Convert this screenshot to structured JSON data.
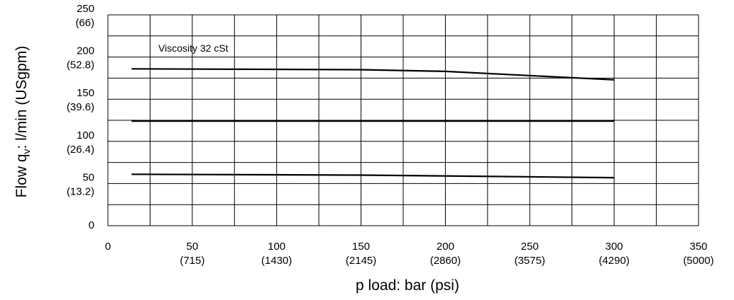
{
  "chart_data": {
    "type": "line",
    "annotation": "Viscosity  32 cSt",
    "xlabel": "p load:  bar (psi)",
    "ylabel": {
      "prefix": "Flow q",
      "subscript": "v",
      "suffix": ":  l/min (USgpm)"
    },
    "xlim": [
      0,
      350
    ],
    "ylim": [
      0,
      250
    ],
    "x_ticks": [
      {
        "value": 0,
        "label": "0",
        "sublabel": ""
      },
      {
        "value": 50,
        "label": "50",
        "sublabel": "(715)"
      },
      {
        "value": 100,
        "label": "100",
        "sublabel": "(1430)"
      },
      {
        "value": 150,
        "label": "150",
        "sublabel": "(2145)"
      },
      {
        "value": 200,
        "label": "200",
        "sublabel": "(2860)"
      },
      {
        "value": 250,
        "label": "250",
        "sublabel": "(3575)"
      },
      {
        "value": 300,
        "label": "300",
        "sublabel": "(4290)"
      },
      {
        "value": 350,
        "label": "350",
        "sublabel": "(5000)"
      }
    ],
    "y_ticks": [
      {
        "value": 0,
        "label": "0",
        "sublabel": ""
      },
      {
        "value": 50,
        "label": "50",
        "sublabel": "(13.2)"
      },
      {
        "value": 100,
        "label": "100",
        "sublabel": "(26.4)"
      },
      {
        "value": 150,
        "label": "150",
        "sublabel": "(39.6)"
      },
      {
        "value": 200,
        "label": "200",
        "sublabel": "(52.8)"
      },
      {
        "value": 250,
        "label": "250",
        "sublabel": "(66)"
      }
    ],
    "x_gridlines": [
      0,
      25,
      50,
      75,
      100,
      125,
      150,
      175,
      200,
      225,
      250,
      275,
      300,
      325,
      350
    ],
    "y_gridlines": [
      0,
      25,
      50,
      75,
      100,
      125,
      150,
      175,
      200,
      225,
      250
    ],
    "grid": true,
    "series": [
      {
        "x": [
          14,
          150,
          200,
          300
        ],
        "y": [
          186,
          185,
          183,
          173
        ]
      },
      {
        "x": [
          14,
          300
        ],
        "y": [
          124,
          124
        ]
      },
      {
        "x": [
          14,
          150,
          300
        ],
        "y": [
          61,
          60,
          57
        ]
      }
    ]
  }
}
